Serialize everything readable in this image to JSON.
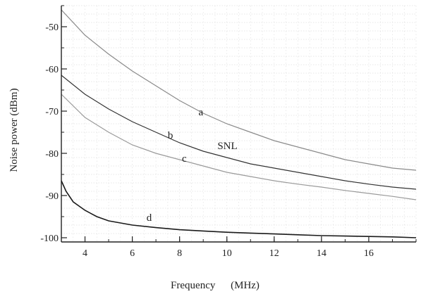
{
  "chart_data": {
    "type": "line",
    "title": "",
    "xlabel": "Frequency",
    "xunit": "(MHz)",
    "ylabel": "Noise power (dBm)",
    "xlim": [
      3,
      18
    ],
    "ylim": [
      -101,
      -45
    ],
    "xticks": [
      4,
      6,
      8,
      10,
      12,
      14,
      16
    ],
    "yticks": [
      -50,
      -60,
      -70,
      -80,
      -90,
      -100
    ],
    "grid": true,
    "legend": "none",
    "series": [
      {
        "name": "a",
        "color": "#8a8a8a",
        "x": [
          3,
          4,
          5,
          6,
          7,
          8,
          9,
          10,
          11,
          12,
          13,
          14,
          15,
          16,
          17,
          18
        ],
        "y": [
          -46,
          -52,
          -56.5,
          -60.5,
          -64,
          -67.5,
          -70.5,
          -73,
          -75,
          -77,
          -78.5,
          -80,
          -81.5,
          -82.5,
          -83.5,
          -84
        ],
        "label": "a",
        "label_x": 8.8,
        "label_y": -71
      },
      {
        "name": "b",
        "color": "#333333",
        "x": [
          3,
          4,
          5,
          6,
          7,
          8,
          9,
          10,
          11,
          12,
          13,
          14,
          15,
          16,
          17,
          18
        ],
        "y": [
          -61.5,
          -66,
          -69.5,
          -72.5,
          -75,
          -77.5,
          -79.5,
          -81,
          -82.5,
          -83.5,
          -84.5,
          -85.5,
          -86.5,
          -87.3,
          -88,
          -88.5
        ],
        "label": "b",
        "label_x": 7.5,
        "label_y": -76.5
      },
      {
        "name": "SNL",
        "color": "#333333",
        "label": "SNL",
        "label_x": 9.6,
        "label_y": -79
      },
      {
        "name": "c",
        "color": "#9a9a9a",
        "x": [
          3,
          4,
          5,
          6,
          7,
          8,
          9,
          10,
          11,
          12,
          13,
          14,
          15,
          16,
          17,
          18
        ],
        "y": [
          -66,
          -71.5,
          -75,
          -78,
          -80,
          -81.5,
          -83,
          -84.5,
          -85.5,
          -86.5,
          -87.3,
          -88,
          -88.8,
          -89.5,
          -90.2,
          -91
        ],
        "label": "c",
        "label_x": 8.1,
        "label_y": -82
      },
      {
        "name": "d",
        "color": "#1a1a1a",
        "x": [
          3,
          3.2,
          3.5,
          4,
          4.5,
          5,
          6,
          7,
          8,
          9,
          10,
          11,
          12,
          13,
          14,
          15,
          16,
          17,
          18
        ],
        "y": [
          -86.5,
          -89,
          -91.5,
          -93.5,
          -95,
          -96,
          -97,
          -97.6,
          -98.1,
          -98.4,
          -98.7,
          -98.9,
          -99.1,
          -99.3,
          -99.5,
          -99.6,
          -99.7,
          -99.8,
          -100
        ],
        "label": "d",
        "label_x": 6.6,
        "label_y": -96
      }
    ]
  }
}
